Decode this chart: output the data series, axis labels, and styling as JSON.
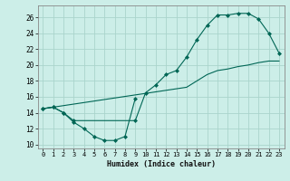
{
  "xlabel": "Humidex (Indice chaleur)",
  "bg_color": "#cceee8",
  "grid_color": "#aad4cc",
  "line_color": "#006655",
  "xlim": [
    -0.5,
    23.5
  ],
  "ylim": [
    9.5,
    27.5
  ],
  "xticks": [
    0,
    1,
    2,
    3,
    4,
    5,
    6,
    7,
    8,
    9,
    10,
    11,
    12,
    13,
    14,
    15,
    16,
    17,
    18,
    19,
    20,
    21,
    22,
    23
  ],
  "yticks": [
    10,
    12,
    14,
    16,
    18,
    20,
    22,
    24,
    26
  ],
  "line1_x": [
    0,
    1,
    2,
    3,
    4,
    5,
    6,
    7,
    8,
    9
  ],
  "line1_y": [
    14.5,
    14.7,
    14.0,
    12.8,
    12.0,
    11.0,
    10.5,
    10.5,
    11.0,
    15.8
  ],
  "line2_x": [
    0,
    1,
    2,
    3,
    9,
    10,
    11,
    12,
    13,
    14,
    15,
    16,
    17,
    18,
    19,
    20,
    21,
    22,
    23
  ],
  "line2_y": [
    14.5,
    14.7,
    14.0,
    13.0,
    13.0,
    16.5,
    17.5,
    18.8,
    19.3,
    21.0,
    23.2,
    25.0,
    26.3,
    26.3,
    26.5,
    26.5,
    25.8,
    24.0,
    21.5
  ],
  "line3_x": [
    0,
    14,
    15,
    16,
    17,
    18,
    19,
    20,
    21,
    22,
    23
  ],
  "line3_y": [
    14.5,
    17.2,
    18.0,
    18.8,
    19.3,
    19.5,
    19.8,
    20.0,
    20.3,
    20.5,
    20.5
  ]
}
